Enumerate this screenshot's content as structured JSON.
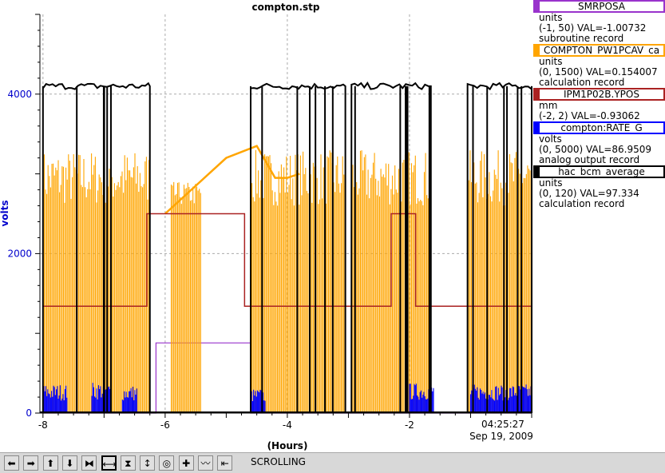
{
  "chart_data": {
    "type": "line",
    "title": "compton.stp",
    "xlabel": "(Hours)",
    "ylabel": "volts",
    "xlim": [
      -8.05,
      0
    ],
    "ylim": [
      0,
      5000
    ],
    "x_ticks": [
      -8,
      -6,
      -4,
      -2
    ],
    "x_tick_labels": [
      "-8",
      "-6",
      "-4",
      "-2"
    ],
    "y_ticks": [
      0,
      2000,
      4000
    ],
    "y_tick_labels": [
      "0",
      "2000",
      "4000"
    ],
    "end_time_label": "04:25:27",
    "end_date_label": "Sep 19, 2009",
    "grid": true,
    "legend_placement": "right",
    "series": [
      {
        "name": "SMRPOSA",
        "color": "#9933cc",
        "units": "units",
        "range": "(-1, 50) VAL=-1.00732",
        "record": "subroutine record",
        "segments": [
          [
            -8,
            0
          ],
          [
            -6.15,
            0
          ],
          [
            -6.15,
            880
          ],
          [
            -4.6,
            880
          ],
          [
            -4.6,
            0
          ],
          [
            0,
            0
          ]
        ]
      },
      {
        "name": "COMPTON_PW1PCAV_ca",
        "color": "#ffa500",
        "units": "units",
        "range": "(0, 1500) VAL=0.154007",
        "record": "calculation record",
        "baseline_times": [
          -6.0,
          -5.0,
          -4.5,
          -4.2,
          -4.0,
          -3.8
        ],
        "baseline_values": [
          2500,
          3200,
          3350,
          2950,
          2950,
          3000
        ]
      },
      {
        "name": "IPM1P02B.YPOS",
        "color": "#aa2222",
        "units": "mm",
        "range": "(-2, 2) VAL=-0.93062",
        "record": "",
        "levels": [
          [
            -8,
            1340
          ],
          [
            -6.3,
            1340
          ],
          [
            -6.3,
            2500
          ],
          [
            -4.7,
            2500
          ],
          [
            -4.7,
            1340
          ],
          [
            -2.3,
            1340
          ],
          [
            -2.3,
            2500
          ],
          [
            -1.9,
            2500
          ],
          [
            -1.9,
            1340
          ],
          [
            0,
            1340
          ]
        ]
      },
      {
        "name": "compton:RATE_G",
        "color": "#0000ff",
        "units": "volts",
        "range": "(0, 5000) VAL=86.9509",
        "record": "analog output record",
        "bursts": [
          [
            -8,
            -7.6,
            260
          ],
          [
            -7.2,
            -6.9,
            280
          ],
          [
            -6.7,
            -6.45,
            250
          ],
          [
            -4.6,
            -4.35,
            220
          ],
          [
            -2.0,
            -1.6,
            270
          ],
          [
            -1.0,
            0,
            260
          ]
        ]
      },
      {
        "name": "hac_bcm_average",
        "color": "#000000",
        "units": "units",
        "range": "(0, 120) VAL=97.334",
        "record": "calculation record",
        "beam_on": [
          [
            -8,
            -6.25
          ],
          [
            -4.6,
            -3.05
          ],
          [
            -2.95,
            -1.65
          ],
          [
            -1.05,
            0
          ]
        ],
        "level": 4100
      }
    ]
  },
  "toolbar": {
    "buttons": [
      "arrow-left-icon",
      "arrow-right-icon",
      "arrow-up-icon",
      "arrow-down-icon",
      "zoom-in-x-icon",
      "zoom-out-x-icon",
      "zoom-in-y-icon",
      "zoom-out-y-icon",
      "autoscale-icon",
      "add-icon",
      "timescale-icon",
      "go-to-end-icon"
    ],
    "glyphs": [
      "⬅",
      "➡",
      "⬆",
      "⬇",
      "⧓",
      "⟷",
      "⧗",
      "↕",
      "◎",
      "✚",
      "〰",
      "⇤"
    ],
    "active_index": 5,
    "scrolling_label": "SCROLLING"
  }
}
